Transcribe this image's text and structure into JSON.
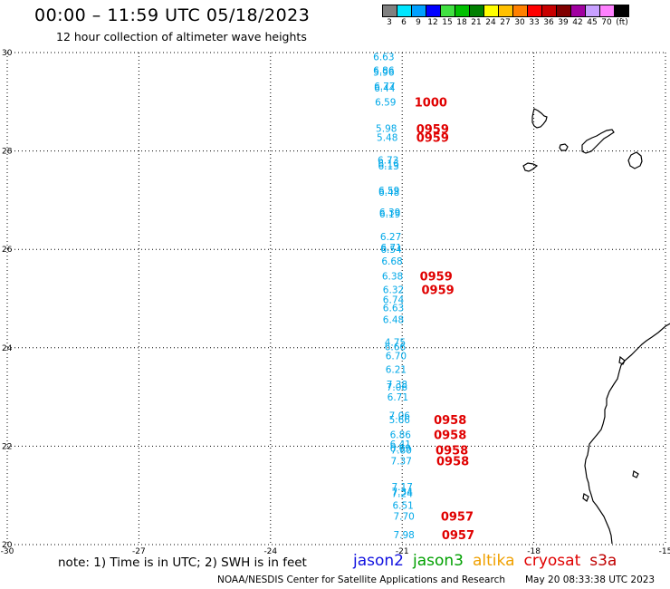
{
  "header": {
    "title": "00:00 – 11:59 UTC 05/18/2023",
    "subtitle": "12 hour collection of altimeter wave heights"
  },
  "legend": {
    "unit": "(ft)",
    "bins": [
      {
        "label": "3",
        "color": "#808080"
      },
      {
        "label": "6",
        "color": "#00e6ff"
      },
      {
        "label": "9",
        "color": "#00a0ff"
      },
      {
        "label": "12",
        "color": "#0000ff"
      },
      {
        "label": "15",
        "color": "#40e040"
      },
      {
        "label": "18",
        "color": "#00c000"
      },
      {
        "label": "21",
        "color": "#008000"
      },
      {
        "label": "24",
        "color": "#ffff00"
      },
      {
        "label": "27",
        "color": "#ffc000"
      },
      {
        "label": "30",
        "color": "#ff8000"
      },
      {
        "label": "33",
        "color": "#ff0000"
      },
      {
        "label": "36",
        "color": "#c80000"
      },
      {
        "label": "39",
        "color": "#800000"
      },
      {
        "label": "42",
        "color": "#a000a0"
      },
      {
        "label": "45",
        "color": "#c8a0ff"
      },
      {
        "label": "70",
        "color": "#ff80ff"
      },
      {
        "label": "",
        "color": "#000000"
      }
    ]
  },
  "map": {
    "lon_range": [
      -30,
      -15
    ],
    "lat_range": [
      20,
      30
    ],
    "lon_ticks": [
      {
        "value": -30,
        "label": "-30"
      },
      {
        "value": -27,
        "label": "-27"
      },
      {
        "value": -24,
        "label": "-24"
      },
      {
        "value": -21,
        "label": "-21"
      },
      {
        "value": -18,
        "label": "-18"
      },
      {
        "value": -15,
        "label": "-15"
      }
    ],
    "lat_ticks": [
      {
        "value": 20,
        "label": "20"
      },
      {
        "value": 22,
        "label": "22"
      },
      {
        "value": 24,
        "label": "24"
      },
      {
        "value": 26,
        "label": "26"
      },
      {
        "value": 28,
        "label": "28"
      },
      {
        "value": 30,
        "label": "30"
      }
    ],
    "grid": "dotted"
  },
  "observations": {
    "color": "#00a8e8",
    "points": [
      {
        "lon": -21.42,
        "lat": 29.92,
        "swh": "6.63"
      },
      {
        "lon": -21.42,
        "lat": 29.64,
        "swh": "6.86"
      },
      {
        "lon": -21.42,
        "lat": 29.6,
        "swh": "5.96"
      },
      {
        "lon": -21.4,
        "lat": 29.32,
        "swh": "6.77"
      },
      {
        "lon": -21.4,
        "lat": 29.28,
        "swh": "6.44"
      },
      {
        "lon": -21.38,
        "lat": 29.0,
        "swh": "6.59"
      },
      {
        "lon": -21.36,
        "lat": 28.46,
        "swh": "5.98"
      },
      {
        "lon": -21.34,
        "lat": 28.28,
        "swh": "5.48"
      },
      {
        "lon": -21.32,
        "lat": 27.82,
        "swh": "6.73"
      },
      {
        "lon": -21.31,
        "lat": 27.74,
        "swh": "6.16"
      },
      {
        "lon": -21.31,
        "lat": 27.7,
        "swh": "6.13"
      },
      {
        "lon": -21.3,
        "lat": 27.2,
        "swh": "6.59"
      },
      {
        "lon": -21.3,
        "lat": 27.16,
        "swh": "6.48"
      },
      {
        "lon": -21.28,
        "lat": 26.76,
        "swh": "6.39"
      },
      {
        "lon": -21.28,
        "lat": 26.72,
        "swh": "6.19"
      },
      {
        "lon": -21.26,
        "lat": 26.26,
        "swh": "6.27"
      },
      {
        "lon": -21.25,
        "lat": 26.04,
        "swh": "6.71"
      },
      {
        "lon": -21.25,
        "lat": 26.0,
        "swh": "6.54"
      },
      {
        "lon": -21.23,
        "lat": 25.76,
        "swh": "6.68"
      },
      {
        "lon": -21.22,
        "lat": 25.46,
        "swh": "6.38"
      },
      {
        "lon": -21.2,
        "lat": 25.18,
        "swh": "6.32"
      },
      {
        "lon": -21.2,
        "lat": 24.98,
        "swh": "6.74"
      },
      {
        "lon": -21.2,
        "lat": 24.82,
        "swh": "6.63"
      },
      {
        "lon": -21.2,
        "lat": 24.58,
        "swh": "6.48"
      },
      {
        "lon": -21.16,
        "lat": 24.12,
        "swh": "4.75"
      },
      {
        "lon": -21.16,
        "lat": 24.02,
        "swh": "6.66"
      },
      {
        "lon": -21.14,
        "lat": 23.84,
        "swh": "6.70"
      },
      {
        "lon": -21.14,
        "lat": 23.56,
        "swh": "6.21"
      },
      {
        "lon": -21.12,
        "lat": 23.26,
        "swh": "7.38"
      },
      {
        "lon": -21.12,
        "lat": 23.2,
        "swh": "7.06"
      },
      {
        "lon": -21.1,
        "lat": 23.0,
        "swh": "6.71"
      },
      {
        "lon": -21.06,
        "lat": 22.62,
        "swh": "7.06"
      },
      {
        "lon": -21.06,
        "lat": 22.54,
        "swh": "5.66"
      },
      {
        "lon": -21.04,
        "lat": 22.24,
        "swh": "6.86"
      },
      {
        "lon": -21.04,
        "lat": 22.04,
        "swh": "6.41"
      },
      {
        "lon": -21.04,
        "lat": 21.96,
        "swh": "6.69"
      },
      {
        "lon": -21.02,
        "lat": 21.92,
        "swh": "7.80"
      },
      {
        "lon": -21.02,
        "lat": 21.7,
        "swh": "7.37"
      },
      {
        "lon": -21.0,
        "lat": 21.18,
        "swh": "7.17"
      },
      {
        "lon": -21.0,
        "lat": 21.08,
        "swh": "7.34"
      },
      {
        "lon": -21.0,
        "lat": 21.04,
        "swh": "7.24"
      },
      {
        "lon": -20.98,
        "lat": 20.8,
        "swh": "6.51"
      },
      {
        "lon": -20.96,
        "lat": 20.58,
        "swh": "7.70"
      },
      {
        "lon": -20.96,
        "lat": 20.2,
        "swh": "7.98"
      }
    ]
  },
  "passes": {
    "color": "#e00000",
    "labels": [
      {
        "lon": -20.72,
        "lat": 29.0,
        "time": "1000"
      },
      {
        "lon": -20.68,
        "lat": 28.45,
        "time": "0959"
      },
      {
        "lon": -20.68,
        "lat": 28.28,
        "time": "0959"
      },
      {
        "lon": -20.6,
        "lat": 25.46,
        "time": "0959"
      },
      {
        "lon": -20.56,
        "lat": 25.18,
        "time": "0959"
      },
      {
        "lon": -20.28,
        "lat": 22.54,
        "time": "0958"
      },
      {
        "lon": -20.28,
        "lat": 22.24,
        "time": "0958"
      },
      {
        "lon": -20.24,
        "lat": 21.92,
        "time": "0958"
      },
      {
        "lon": -20.22,
        "lat": 21.7,
        "time": "0958"
      },
      {
        "lon": -20.12,
        "lat": 20.58,
        "time": "0957"
      },
      {
        "lon": -20.1,
        "lat": 20.2,
        "time": "0957"
      }
    ]
  },
  "footer": {
    "note": "note: 1) Time is in UTC; 2) SWH is in feet",
    "satellites": [
      {
        "name": "jason2",
        "color": "#1010e0"
      },
      {
        "name": "jason3",
        "color": "#00a000"
      },
      {
        "name": "altika",
        "color": "#f0a000"
      },
      {
        "name": "cryosat",
        "color": "#e00000"
      },
      {
        "name": "s3a",
        "color": "#c00000"
      }
    ],
    "credit": "NOAA/NESDIS Center for Satellite Applications and Research",
    "timestamp": "May 20 08:33:38 UTC 2023"
  }
}
